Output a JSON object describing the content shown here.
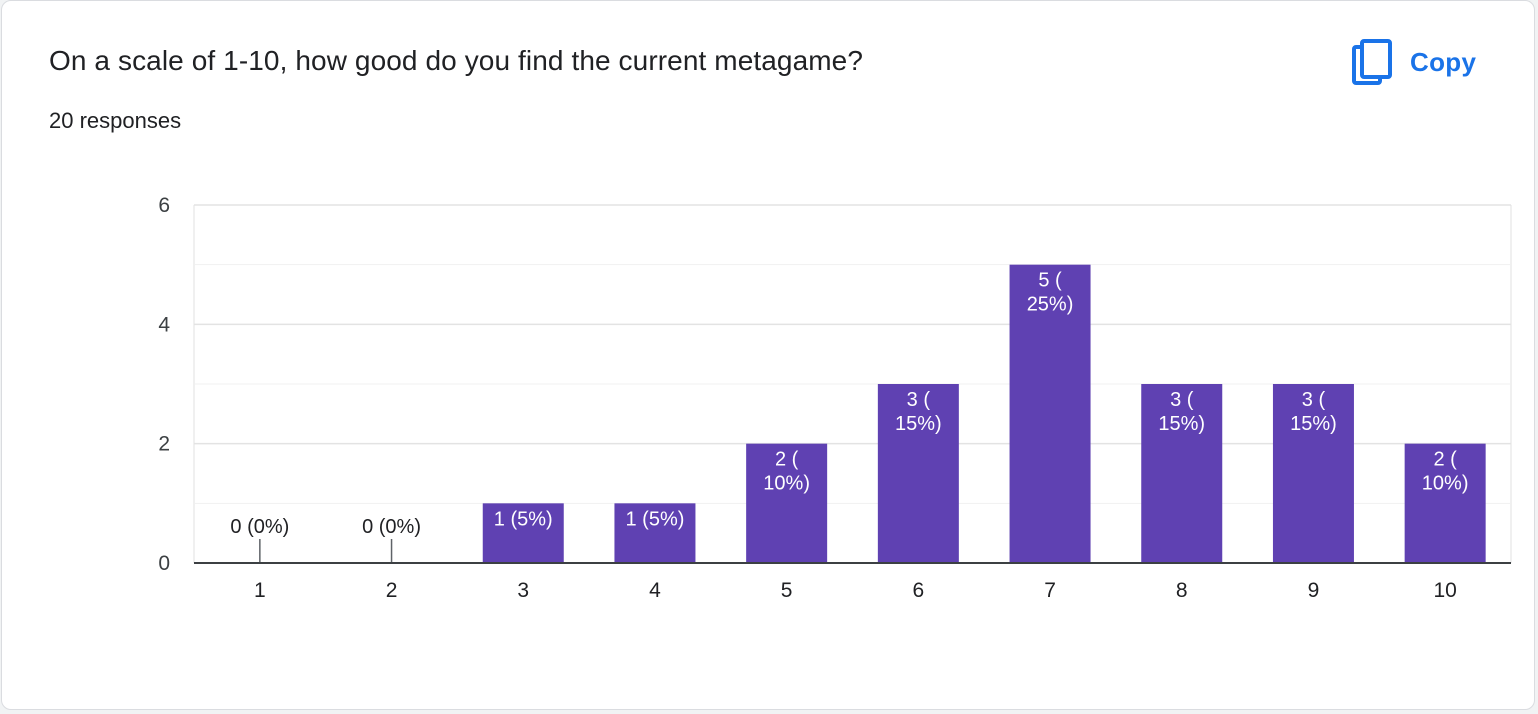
{
  "question": {
    "title": "On a scale of 1-10, how good do you find the current metagame?",
    "responses": "20 responses"
  },
  "copy_button": {
    "label": "Copy",
    "icon": "copy-icon",
    "color": "#1a73e8"
  },
  "colors": {
    "bar": "#5f41b2",
    "grid": "#eceff1",
    "axis": "#3c4043",
    "text": "#202124",
    "label_inside": "#ffffff"
  },
  "chart_data": {
    "type": "bar",
    "categories": [
      "1",
      "2",
      "3",
      "4",
      "5",
      "6",
      "7",
      "8",
      "9",
      "10"
    ],
    "values": [
      0,
      0,
      1,
      1,
      2,
      3,
      5,
      3,
      3,
      2
    ],
    "data_labels": [
      [
        "0 (0%)"
      ],
      [
        "0 (0%)"
      ],
      [
        "1 (5%)"
      ],
      [
        "1 (5%)"
      ],
      [
        "2 (",
        "10%)"
      ],
      [
        "3 (",
        "15%)"
      ],
      [
        "5 (",
        "25%)"
      ],
      [
        "3 (",
        "15%)"
      ],
      [
        "3 (",
        "15%)"
      ],
      [
        "2 (",
        "10%)"
      ]
    ],
    "yticks": [
      0,
      2,
      4,
      6
    ],
    "ylim": [
      0,
      6
    ],
    "minor_grid_step": 1,
    "grid": true,
    "legend": "none"
  }
}
